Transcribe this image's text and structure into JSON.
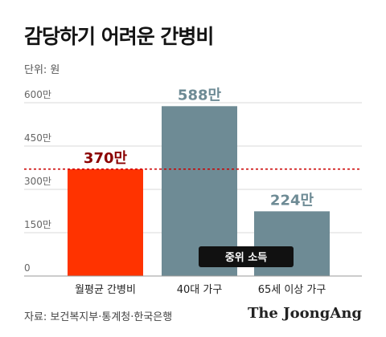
{
  "title": "감당하기 어려운 간병비",
  "unit_label": "단위: 원",
  "source": "자료: 보건복지부·통계청·한국은행",
  "brand": "The JoongAng",
  "colors": {
    "highlight_bar": "#FF3300",
    "gray_bar": "#6E8B95",
    "highlight_label": "#8B0000",
    "gray_label": "#6E8B95",
    "reference_line": "#CC0000",
    "reference_box": "#111111",
    "grid": "#D9D9D9",
    "axis_text": "#666666"
  },
  "chart_data": {
    "type": "bar",
    "title": "감당하기 어려운 간병비",
    "categories": [
      "월평균 간병비",
      "40대 가구",
      "65세 이상 가구"
    ],
    "values": [
      370,
      588,
      224
    ],
    "value_labels": [
      "370만",
      "588만",
      "224만"
    ],
    "highlight_index": 0,
    "ylim": [
      0,
      600
    ],
    "yticks": [
      0,
      150,
      300,
      450,
      600
    ],
    "ytick_labels": [
      "0",
      "150만",
      "300만",
      "450만",
      "600만"
    ],
    "ylabel": "단위: 원",
    "xlabel": "",
    "grid": true,
    "reference_line": {
      "value": 370,
      "label": "중위 소득",
      "style": "dashed"
    }
  }
}
